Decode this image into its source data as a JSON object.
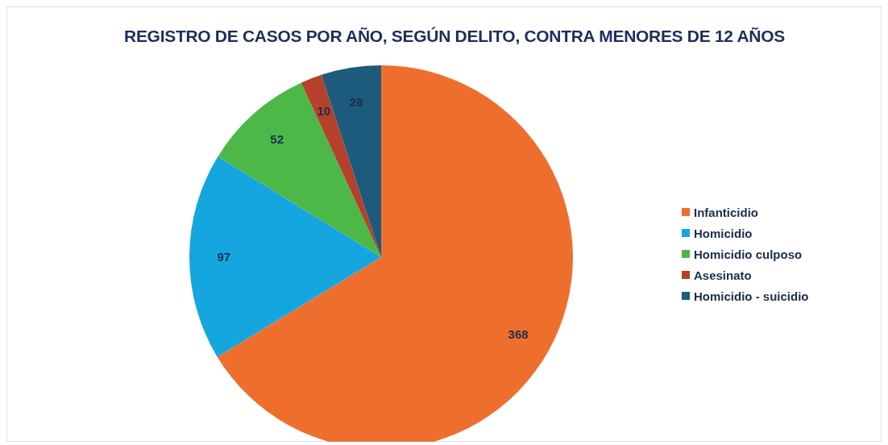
{
  "chart_data": {
    "type": "pie",
    "title": "REGISTRO DE CASOS POR AÑO, SEGÚN DELITO, CONTRA MENORES DE 12 AÑOS",
    "categories": [
      "Infanticidio",
      "Homicidio",
      "Homicidio culposo",
      "Asesinato",
      "Homicidio - suicidio"
    ],
    "values": [
      368,
      97,
      52,
      10,
      28
    ],
    "colors": [
      "#ee6f2d",
      "#16a6df",
      "#4cb848",
      "#b5412a",
      "#1c5b7c"
    ],
    "data_labels": true,
    "legend": "right"
  }
}
